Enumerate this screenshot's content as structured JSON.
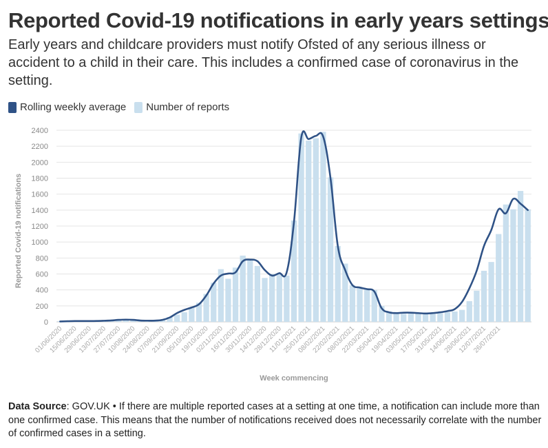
{
  "title": "Reported Covid-19 notifications in early years settings",
  "subtitle": "Early years and childcare providers must notify Ofsted of any serious illness or accident to a child in their care. This includes a confirmed case of coronavirus in the setting.",
  "footer": {
    "source_label": "Data Source",
    "source_text": ": GOV.UK • If there are multiple reported cases at a setting at one time, a notification can include more than one confirmed case. This means that the number of notifications received does not necessarily correlate with the number of confirmed cases in a setting."
  },
  "colors": {
    "line": "#2f5286",
    "bars": "#c9dfee",
    "grid": "#e4e4e4",
    "axis_text": "#999999"
  },
  "chart_data": {
    "type": "bar",
    "xlabel": "Week commencing",
    "ylabel": "Reported Covid-19 notifications",
    "ylim": [
      0,
      2400
    ],
    "yticks": [
      0,
      200,
      400,
      600,
      800,
      1000,
      1200,
      1400,
      1600,
      1800,
      2000,
      2200,
      2400
    ],
    "xtick_labels": [
      "01/06/2020",
      "15/06/2020",
      "29/06/2020",
      "13/07/2020",
      "27/07/2020",
      "10/08/2020",
      "24/08/2020",
      "07/09/2020",
      "21/09/2020",
      "05/10/2020",
      "19/10/2020",
      "02/11/2020",
      "16/11/2020",
      "30/11/2020",
      "14/12/2020",
      "28/12/2020",
      "11/01/2021",
      "25/01/2021",
      "08/02/2021",
      "22/02/2021",
      "08/03/2021",
      "22/03/2021",
      "05/04/2021",
      "19/04/2021",
      "03/05/2021",
      "17/05/2021",
      "31/05/2021",
      "14/06/2021",
      "28/06/2021",
      "12/07/2021",
      "26/07/2021"
    ],
    "grid": true,
    "legend": "top-left",
    "series": [
      {
        "name": "Number of reports",
        "type": "bar",
        "values": [
          10,
          12,
          10,
          10,
          12,
          14,
          15,
          20,
          25,
          30,
          25,
          20,
          15,
          15,
          30,
          60,
          90,
          120,
          180,
          240,
          350,
          490,
          660,
          540,
          680,
          830,
          780,
          700,
          550,
          600,
          600,
          580,
          1270,
          2360,
          2270,
          2300,
          2380,
          1810,
          950,
          730,
          460,
          420,
          420,
          400,
          200,
          130,
          100,
          100,
          110,
          110,
          100,
          100,
          110,
          120,
          130,
          150,
          260,
          390,
          640,
          750,
          1100,
          1470,
          1410,
          1640,
          1410
        ]
      },
      {
        "name": "Rolling weekly average",
        "type": "line",
        "values": [
          5,
          8,
          10,
          10,
          10,
          11,
          14,
          18,
          25,
          28,
          25,
          17,
          15,
          16,
          25,
          55,
          110,
          150,
          180,
          220,
          330,
          480,
          580,
          605,
          620,
          760,
          780,
          760,
          650,
          580,
          610,
          620,
          1250,
          2310,
          2290,
          2330,
          2320,
          1800,
          950,
          650,
          460,
          430,
          410,
          380,
          170,
          120,
          110,
          115,
          115,
          110,
          105,
          110,
          120,
          135,
          160,
          250,
          420,
          640,
          950,
          1150,
          1410,
          1360,
          1540,
          1480,
          1400
        ]
      }
    ]
  }
}
